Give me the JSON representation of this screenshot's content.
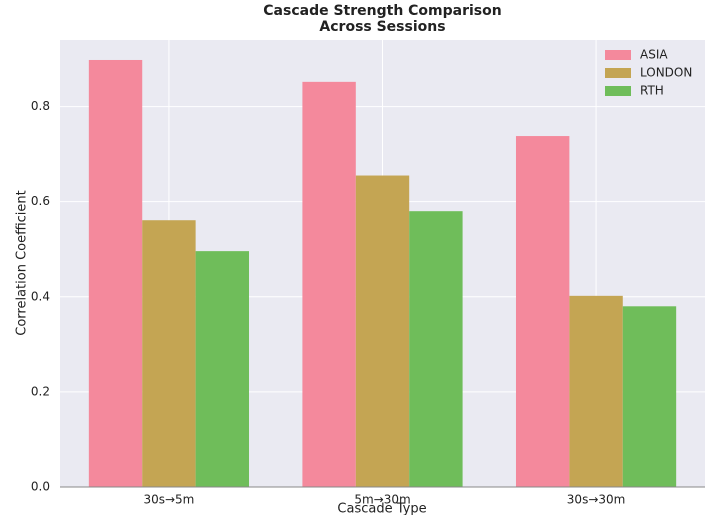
{
  "chart_data": {
    "type": "bar",
    "title": "Cascade Strength Comparison\nAcross Sessions",
    "xlabel": "Cascade Type",
    "ylabel": "Correlation Coefficient",
    "categories": [
      "30s→5m",
      "5m→30m",
      "30s→30m"
    ],
    "series": [
      {
        "name": "ASIA",
        "color": "#f4899c",
        "values": [
          0.898,
          0.852,
          0.738
        ]
      },
      {
        "name": "LONDON",
        "color": "#c4a553",
        "values": [
          0.561,
          0.655,
          0.402
        ]
      },
      {
        "name": "RTH",
        "color": "#6fbd5a",
        "values": [
          0.496,
          0.58,
          0.38
        ]
      }
    ],
    "ylim": [
      0,
      0.94
    ],
    "yticks": [
      {
        "value": 0,
        "label": "0.0"
      },
      0.2,
      0.4,
      0.6,
      0.8
    ],
    "grid": true,
    "legend": "upper right"
  }
}
